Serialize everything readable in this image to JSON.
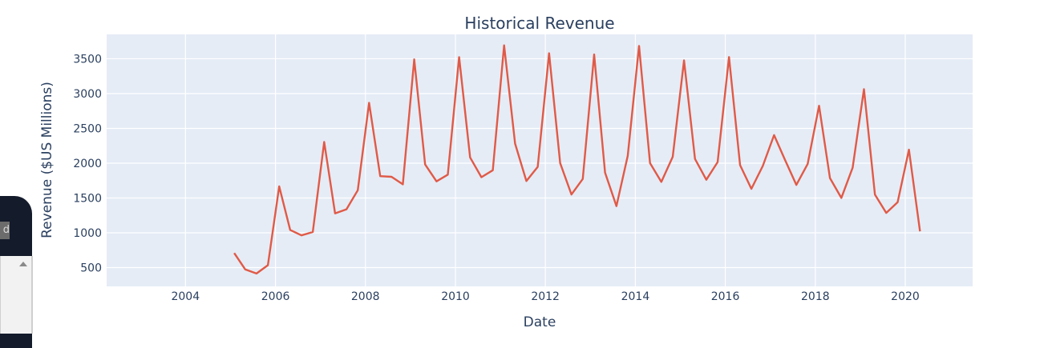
{
  "sidebar": {
    "visible_text": "d"
  },
  "chart_data": {
    "type": "line",
    "title": "Historical Revenue",
    "xlabel": "Date",
    "ylabel": "Revenue ($US Millions)",
    "xlim": [
      "2002-04-01",
      "2021-07-01"
    ],
    "ylim": [
      230,
      3850
    ],
    "x_ticks": [
      "2004",
      "2006",
      "2008",
      "2010",
      "2012",
      "2014",
      "2016",
      "2018",
      "2020"
    ],
    "y_ticks": [
      "500",
      "1000",
      "1500",
      "2000",
      "2500",
      "3000",
      "3500"
    ],
    "grid": true,
    "series": [
      {
        "color": "#e05a47",
        "x": [
          "2005-01-31",
          "2005-04-30",
          "2005-07-31",
          "2005-10-31",
          "2006-01-31",
          "2006-04-30",
          "2006-07-31",
          "2006-10-31",
          "2007-01-31",
          "2007-04-30",
          "2007-07-31",
          "2007-10-31",
          "2008-01-31",
          "2008-04-30",
          "2008-07-31",
          "2008-10-31",
          "2009-01-31",
          "2009-04-30",
          "2009-07-31",
          "2009-10-31",
          "2010-01-31",
          "2010-04-30",
          "2010-07-31",
          "2010-10-31",
          "2011-01-31",
          "2011-04-30",
          "2011-07-31",
          "2011-10-31",
          "2012-01-31",
          "2012-04-30",
          "2012-07-31",
          "2012-10-31",
          "2013-01-31",
          "2013-04-30",
          "2013-07-31",
          "2013-10-31",
          "2014-01-31",
          "2014-04-30",
          "2014-07-31",
          "2014-10-31",
          "2015-01-31",
          "2015-04-30",
          "2015-07-31",
          "2015-10-31",
          "2016-01-31",
          "2016-04-30",
          "2016-07-31",
          "2016-10-31",
          "2017-01-31",
          "2017-04-30",
          "2017-07-31",
          "2017-10-31",
          "2018-01-31",
          "2018-04-30",
          "2018-07-31",
          "2018-10-31",
          "2019-01-31",
          "2019-04-30",
          "2019-07-31",
          "2019-10-31",
          "2020-01-31",
          "2020-04-30"
        ],
        "values": [
          709,
          475,
          415,
          534,
          1667,
          1041,
          963,
          1012,
          2304,
          1279,
          1338,
          1611,
          2866,
          1814,
          1804,
          1696,
          3492,
          1981,
          1739,
          1835,
          3524,
          2083,
          1799,
          1899,
          3693,
          2281,
          1744,
          1947,
          3579,
          2002,
          1550,
          1773,
          3562,
          1865,
          1384,
          2107,
          3684,
          2001,
          1731,
          2092,
          3476,
          2061,
          1762,
          2016,
          3525,
          1972,
          1632,
          1959,
          2403,
          2046,
          1688,
          1989,
          2825,
          1786,
          1501,
          1935,
          3063,
          1548,
          1286,
          1439,
          2194,
          1021
        ]
      }
    ]
  }
}
